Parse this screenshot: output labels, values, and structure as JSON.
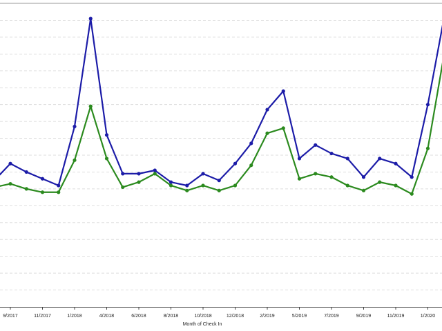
{
  "chart_data": {
    "type": "line",
    "x_label": "Month of Check In",
    "categories": [
      null,
      "9/2017",
      null,
      "11/2017",
      null,
      "1/2018",
      null,
      "4/2018",
      null,
      "6/2018",
      null,
      "8/2018",
      null,
      "10/2018",
      null,
      "12/2018",
      null,
      "2/2019",
      null,
      "5/2019",
      null,
      "7/2019",
      null,
      "9/2019",
      null,
      "11/2019",
      null,
      "1/2020",
      null
    ],
    "series": [
      {
        "color": "#1c1ca8",
        "values": [
          7.5,
          8.5,
          8.0,
          7.6,
          7.2,
          10.7,
          17.1,
          10.2,
          7.9,
          7.9,
          8.1,
          7.4,
          7.2,
          7.9,
          7.5,
          8.5,
          9.7,
          11.7,
          12.8,
          8.8,
          9.6,
          9.1,
          8.8,
          7.7,
          8.8,
          8.5,
          7.7,
          12.0,
          17.1
        ]
      },
      {
        "color": "#2b8a1e",
        "values": [
          7.1,
          7.3,
          7.0,
          6.8,
          6.8,
          8.7,
          11.9,
          8.8,
          7.1,
          7.4,
          7.9,
          7.2,
          6.9,
          7.2,
          6.9,
          7.2,
          8.4,
          10.3,
          10.6,
          7.6,
          7.9,
          7.7,
          7.2,
          6.9,
          7.4,
          7.2,
          6.7,
          9.4,
          14.9
        ]
      }
    ],
    "ylim": [
      0,
      18
    ],
    "yticks": [
      1,
      2,
      3,
      4,
      5,
      6,
      7,
      8,
      9,
      10,
      11,
      12,
      13,
      14,
      15,
      16,
      17
    ],
    "grid": true
  }
}
